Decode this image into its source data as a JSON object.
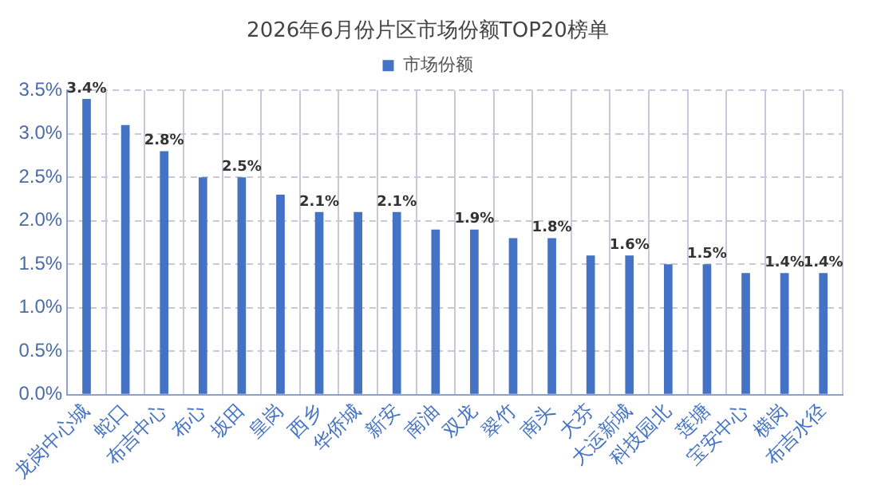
{
  "chart_data": {
    "type": "bar",
    "title": "2026年6月份片区市场份额TOP20榜单",
    "categories": [
      "龙岗中心城",
      "蛇口",
      "布吉中心",
      "布心",
      "坂田",
      "皇岗",
      "西乡",
      "华侨城",
      "新安",
      "南油",
      "双龙",
      "翠竹",
      "南头",
      "大芬",
      "大运新城",
      "科技园北",
      "莲塘",
      "宝安中心",
      "横岗",
      "布吉水径"
    ],
    "series": [
      {
        "name": "市场份额",
        "color": "#4472c4",
        "values": [
          3.4,
          3.1,
          2.8,
          2.5,
          2.5,
          2.3,
          2.1,
          2.1,
          2.1,
          1.9,
          1.9,
          1.8,
          1.8,
          1.6,
          1.6,
          1.5,
          1.5,
          1.4,
          1.4,
          1.4
        ],
        "value_labels": [
          "3.4%",
          null,
          "2.8%",
          null,
          "2.5%",
          null,
          "2.1%",
          null,
          "2.1%",
          null,
          "1.9%",
          null,
          "1.8%",
          null,
          "1.6%",
          null,
          "1.5%",
          null,
          "1.4%",
          "1.4%"
        ]
      }
    ],
    "ylim": [
      0,
      3.5
    ],
    "yticks": [
      {
        "value": 0,
        "label": "0.0%"
      },
      {
        "value": 0.5,
        "label": "0.5%"
      },
      {
        "value": 1,
        "label": "1.0%"
      },
      {
        "value": 1.5,
        "label": "1.5%"
      },
      {
        "value": 2,
        "label": "2.0%"
      },
      {
        "value": 2.5,
        "label": "2.5%"
      },
      {
        "value": 3,
        "label": "3.0%"
      },
      {
        "value": 3.5,
        "label": "3.5%"
      }
    ],
    "grid": true,
    "legend": "top"
  }
}
